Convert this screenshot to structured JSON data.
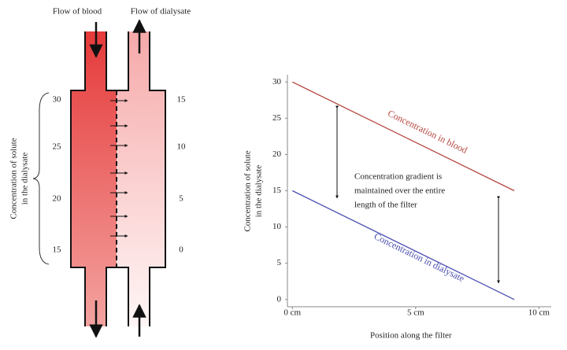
{
  "diagram": {
    "blood_label": "Flow of blood",
    "dialysate_label": "Flow of dialysate",
    "y_label": [
      "Concentration of solute",
      "in the dialysate"
    ],
    "blood_scale": [
      30,
      25,
      20,
      15
    ],
    "dialysate_scale": [
      15,
      10,
      5,
      0
    ]
  },
  "chart_data": {
    "type": "line",
    "x_label": "Position along the filter",
    "y_label": [
      "Concentration of solute",
      "in the dialysate"
    ],
    "annotation": [
      "Concentration gradient is",
      "maintained over the entire",
      "length of the filter"
    ],
    "x": [
      0,
      9
    ],
    "series": [
      {
        "name": "Concentration in blood",
        "color": "#b5473f",
        "values": [
          30,
          15
        ]
      },
      {
        "name": "Concentration in dialysate",
        "color": "#4a4fb0",
        "values": [
          15,
          0
        ]
      }
    ],
    "xlim": [
      -0.2,
      10.5
    ],
    "ylim": [
      -1,
      31
    ],
    "xticks": [
      {
        "value": 0,
        "label": "0 cm"
      },
      {
        "value": 5,
        "label": "5 cm"
      },
      {
        "value": 10,
        "label": "10 cm"
      }
    ],
    "yticks": [
      0,
      5,
      10,
      15,
      20,
      25,
      30
    ],
    "grid": false
  }
}
